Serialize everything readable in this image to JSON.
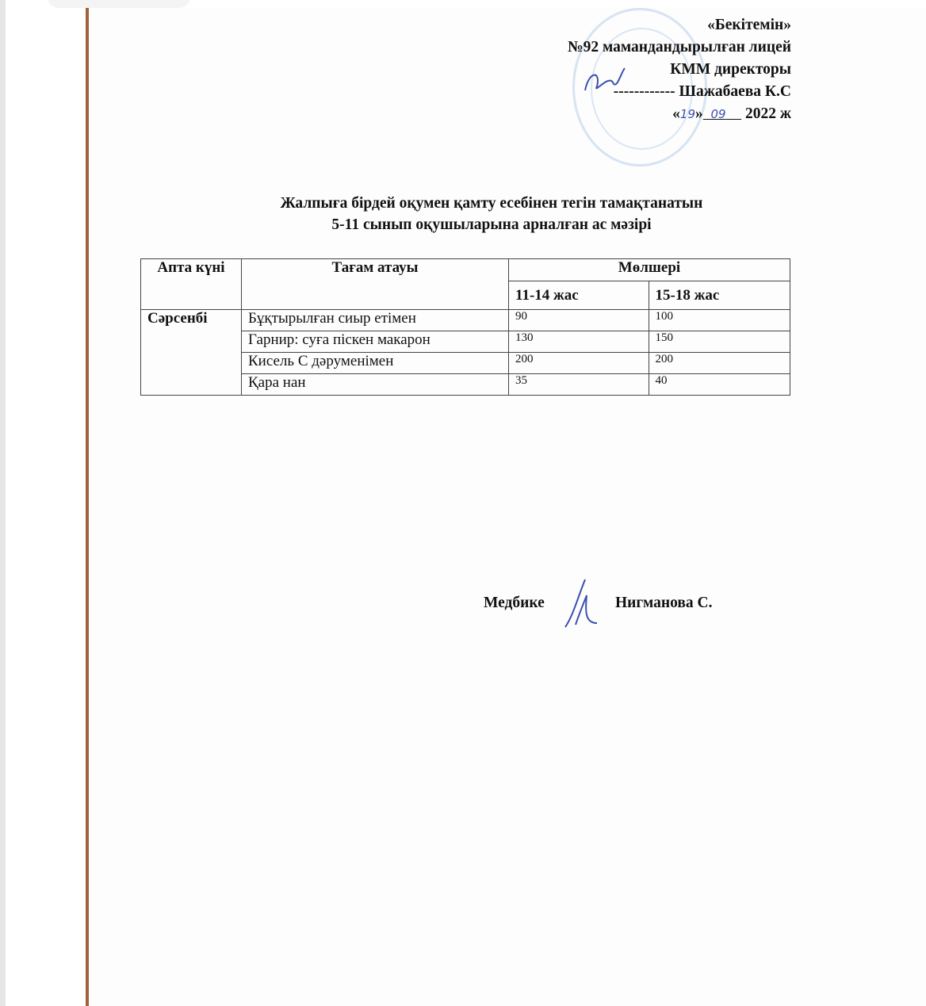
{
  "approval": {
    "line1": "«Бекітемін»",
    "line2": "№92 мамандандырылған лицей",
    "line3": "КММ директоры",
    "line4": "------------ Шажабаева К.С",
    "date_open": "«",
    "date_day": "19",
    "date_mid": "»",
    "date_month": "09",
    "date_year": "2022 ж"
  },
  "title": {
    "line1": "Жалпыға бірдей оқумен қамту есебінен тегін тамақтанатын",
    "line2": "5-11 сынып оқушыларына арналған ас мәзірі"
  },
  "table": {
    "headers": {
      "day": "Апта күні",
      "dish": "Тағам атауы",
      "amount": "Мөлшері",
      "age1": "11-14 жас",
      "age2": "15-18 жас"
    },
    "day": "Сәрсенбі",
    "rows": [
      {
        "dish": "Бұқтырылған  сиыр етімен",
        "a": "90",
        "b": "100"
      },
      {
        "dish": "Гарнир: суға піскен макарон",
        "a": "130",
        "b": "150"
      },
      {
        "dish": "Кисель С дәруменімен",
        "a": "200",
        "b": "200"
      },
      {
        "dish": "Қара нан",
        "a": "35",
        "b": "40"
      }
    ]
  },
  "footer": {
    "role": "Медбике",
    "name": "Нигманова С."
  },
  "colors": {
    "page_edge": "#a0623a",
    "ink_blue": "#3b4fb0"
  }
}
